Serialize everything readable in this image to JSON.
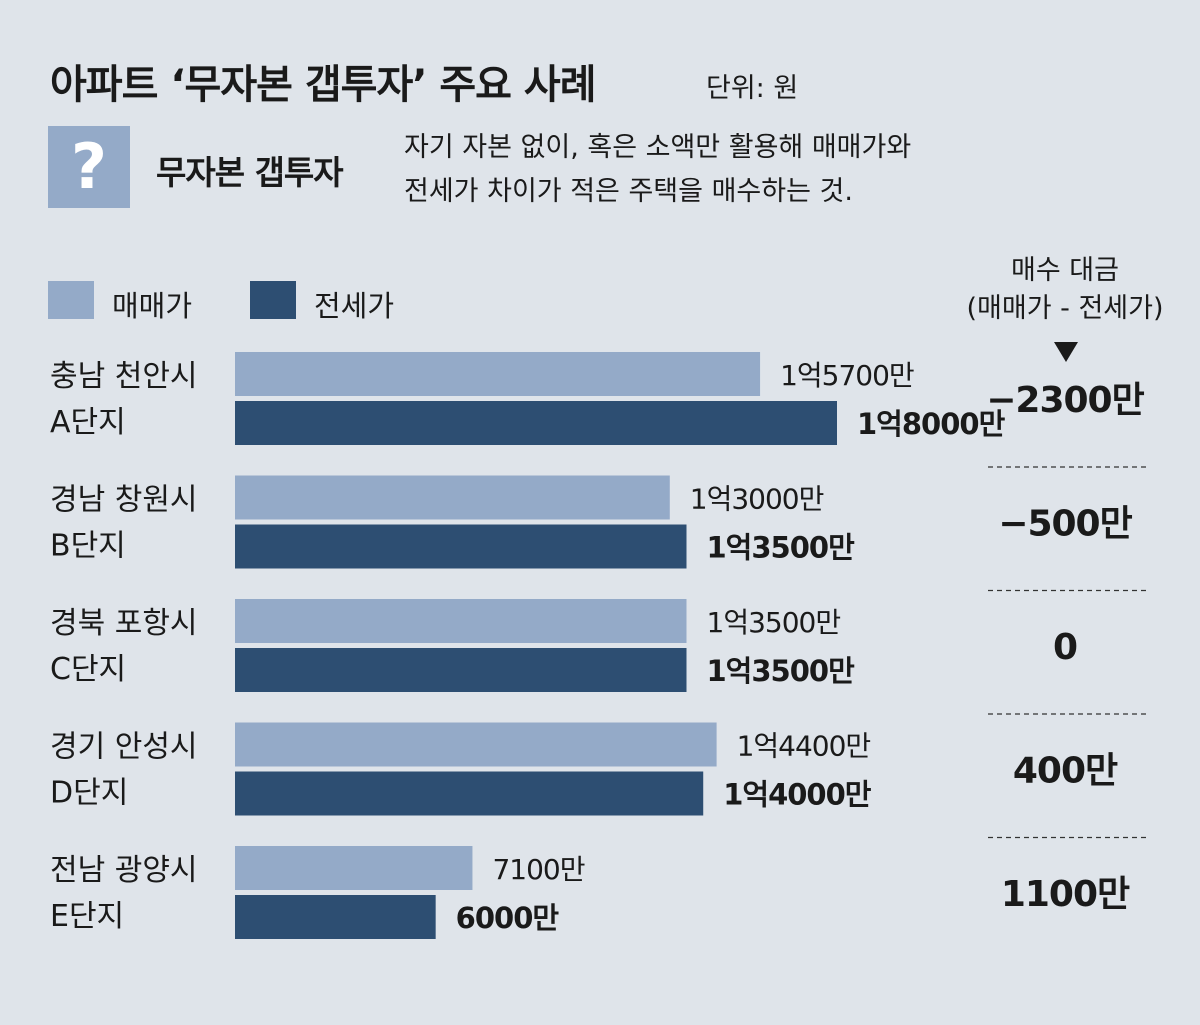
{
  "header": {
    "title": "아파트 ‘무자본 갭투자’ 주요 사례",
    "unit": "단위: 원",
    "question_mark": "?",
    "term": "무자본 갭투자",
    "definition_line1": "자기 자본 없이, 혹은 소액만 활용해 매매가와",
    "definition_line2": "전세가 차이가 적은 주택을 매수하는 것."
  },
  "right_header": {
    "line1": "매수 대금",
    "line2": "(매매가 - 전세가)"
  },
  "colors": {
    "sale": "#94aac8",
    "jeonse": "#2d4e72",
    "background": "#dfe4ea"
  },
  "chart_data": {
    "type": "bar",
    "orientation": "horizontal",
    "legend": [
      "매매가",
      "전세가"
    ],
    "legend_placement": "top-left",
    "categories": [
      [
        "충남 천안시",
        "A단지"
      ],
      [
        "경남 창원시",
        "B단지"
      ],
      [
        "경북 포항시",
        "C단지"
      ],
      [
        "경기 안성시",
        "D단지"
      ],
      [
        "전남 광양시",
        "E단지"
      ]
    ],
    "series": [
      {
        "name": "매매가",
        "values": [
          157000000,
          130000000,
          135000000,
          144000000,
          71000000
        ],
        "labels": [
          "1억5700만",
          "1억3000만",
          "1억3500만",
          "1억4400만",
          "7100만"
        ]
      },
      {
        "name": "전세가",
        "values": [
          180000000,
          135000000,
          135000000,
          140000000,
          60000000
        ],
        "labels": [
          "1억8000만",
          "1억3500만",
          "1억3500만",
          "1억4000만",
          "6000만"
        ]
      }
    ],
    "difference_labels": [
      "−2300만",
      "−500만",
      "0",
      "400만",
      "1100만"
    ],
    "difference_values": [
      -23000000,
      -5000000,
      0,
      4000000,
      11000000
    ],
    "xlim": [
      0,
      180000000
    ],
    "grid": false
  }
}
